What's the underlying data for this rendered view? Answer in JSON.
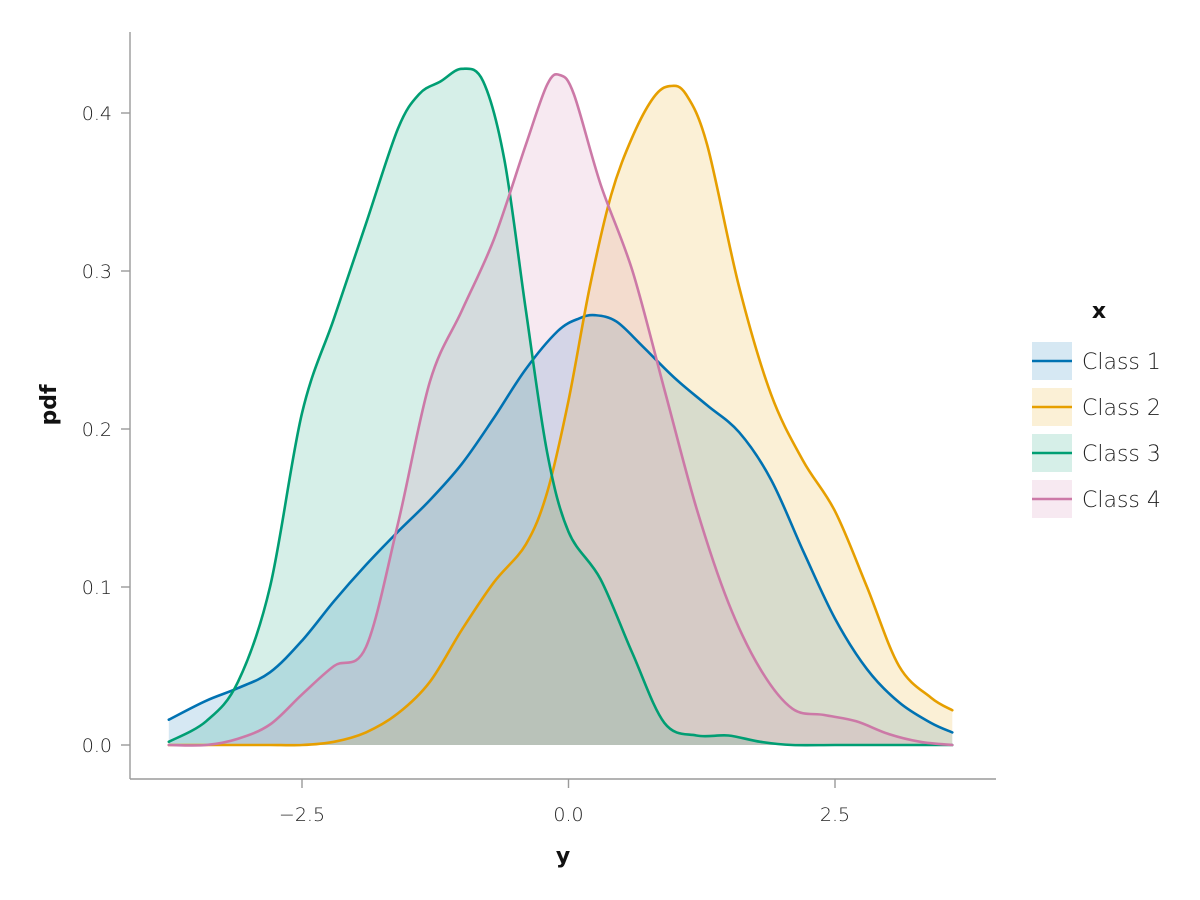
{
  "chart_data": {
    "type": "area",
    "title": "",
    "xlabel": "y",
    "ylabel": "pdf",
    "xlim": [
      -4.0,
      4.0
    ],
    "ylim": [
      -0.02,
      0.445
    ],
    "x_ticks": [
      -2.5,
      0.0,
      2.5
    ],
    "x_tick_labels": [
      "−2.5",
      "0.0",
      "2.5"
    ],
    "y_ticks": [
      0.0,
      0.1,
      0.2,
      0.3,
      0.4
    ],
    "y_tick_labels": [
      "0.0",
      "0.1",
      "0.2",
      "0.3",
      "0.4"
    ],
    "grid": false,
    "legend": {
      "title": "x",
      "placement": "right"
    },
    "series": [
      {
        "name": "Class 1",
        "color": "#0072B2",
        "x": [
          -3.75,
          -3.4,
          -3.1,
          -2.8,
          -2.5,
          -2.2,
          -1.9,
          -1.6,
          -1.3,
          -1.0,
          -0.7,
          -0.4,
          -0.1,
          0.1,
          0.25,
          0.45,
          0.7,
          1.0,
          1.3,
          1.6,
          1.9,
          2.2,
          2.5,
          2.8,
          3.1,
          3.4,
          3.6
        ],
        "y": [
          0.016,
          0.028,
          0.036,
          0.046,
          0.066,
          0.091,
          0.114,
          0.135,
          0.155,
          0.178,
          0.207,
          0.238,
          0.262,
          0.27,
          0.272,
          0.268,
          0.252,
          0.232,
          0.215,
          0.198,
          0.168,
          0.123,
          0.08,
          0.048,
          0.027,
          0.014,
          0.008
        ]
      },
      {
        "name": "Class 2",
        "color": "#E69F00",
        "x": [
          -3.75,
          -3.4,
          -3.1,
          -2.8,
          -2.5,
          -2.2,
          -1.9,
          -1.6,
          -1.3,
          -1.0,
          -0.7,
          -0.4,
          -0.2,
          0.0,
          0.2,
          0.4,
          0.6,
          0.8,
          0.95,
          1.1,
          1.3,
          1.6,
          1.9,
          2.2,
          2.5,
          2.8,
          3.1,
          3.4,
          3.6
        ],
        "y": [
          0.0,
          0.0,
          0.0,
          0.0,
          0.0,
          0.002,
          0.008,
          0.02,
          0.04,
          0.073,
          0.103,
          0.127,
          0.16,
          0.218,
          0.29,
          0.348,
          0.385,
          0.41,
          0.417,
          0.412,
          0.38,
          0.29,
          0.222,
          0.18,
          0.148,
          0.1,
          0.05,
          0.03,
          0.022
        ]
      },
      {
        "name": "Class 3",
        "color": "#009E73",
        "x": [
          -3.75,
          -3.4,
          -3.1,
          -2.8,
          -2.5,
          -2.2,
          -1.9,
          -1.6,
          -1.4,
          -1.2,
          -1.0,
          -0.8,
          -0.6,
          -0.4,
          -0.2,
          0.0,
          0.3,
          0.6,
          0.9,
          1.2,
          1.5,
          1.8,
          2.1,
          2.5,
          3.0,
          3.6
        ],
        "y": [
          0.002,
          0.015,
          0.04,
          0.1,
          0.21,
          0.27,
          0.33,
          0.39,
          0.412,
          0.42,
          0.428,
          0.42,
          0.37,
          0.275,
          0.185,
          0.135,
          0.105,
          0.058,
          0.014,
          0.006,
          0.006,
          0.002,
          0.0,
          0.0,
          0.0,
          0.0
        ]
      },
      {
        "name": "Class 4",
        "color": "#CC79A7",
        "x": [
          -3.75,
          -3.4,
          -3.1,
          -2.8,
          -2.5,
          -2.2,
          -1.9,
          -1.6,
          -1.3,
          -1.0,
          -0.7,
          -0.4,
          -0.2,
          -0.08,
          0.05,
          0.3,
          0.6,
          0.9,
          1.2,
          1.5,
          1.8,
          2.1,
          2.4,
          2.7,
          3.0,
          3.3,
          3.6
        ],
        "y": [
          0.0,
          0.0,
          0.004,
          0.013,
          0.032,
          0.05,
          0.062,
          0.14,
          0.23,
          0.275,
          0.32,
          0.38,
          0.418,
          0.424,
          0.412,
          0.355,
          0.3,
          0.225,
          0.15,
          0.09,
          0.048,
          0.023,
          0.019,
          0.015,
          0.007,
          0.002,
          0.0
        ]
      }
    ]
  }
}
